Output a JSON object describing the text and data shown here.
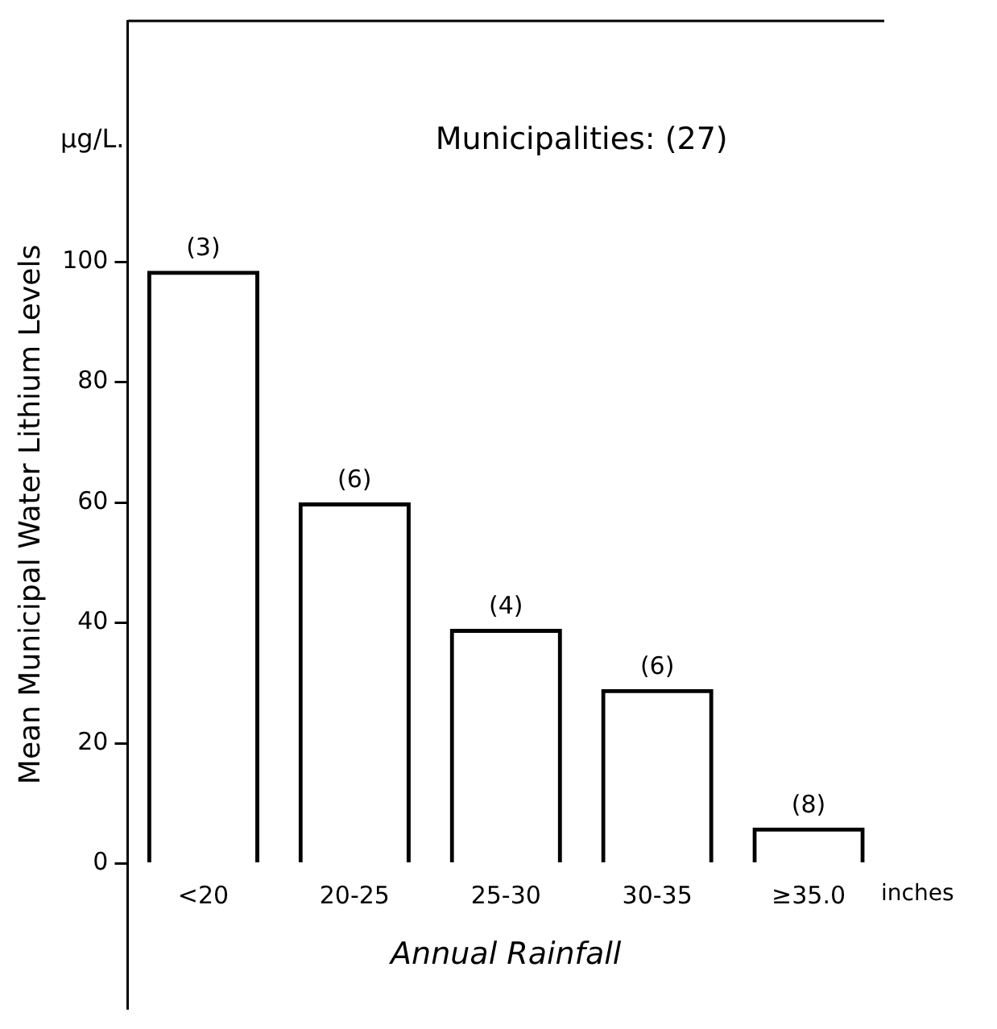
{
  "chart_data": {
    "type": "bar",
    "title": "Municipalities: (27)",
    "ylabel": "Mean Municipal Water Lithium Levels",
    "xlabel": "Annual Rainfall",
    "categories": [
      "<20",
      "20-25",
      "25-30",
      "30-35",
      "≥35.0"
    ],
    "values": [
      98.5,
      60,
      39,
      29,
      6
    ],
    "color": "#000000",
    "ylim": [
      -24,
      140
    ],
    "yticks": [
      0,
      20,
      40,
      60,
      80,
      100
    ],
    "grid": false,
    "legend": false,
    "annotations": [
      "μg/L.",
      "inches",
      {
        "text": "(3)",
        "x": "<20",
        "y": 98.5
      },
      {
        "text": "(6)",
        "x": "20-25",
        "y": 60
      },
      {
        "text": "(4)",
        "x": "25-30",
        "y": 39
      },
      {
        "text": "(6)",
        "x": "30-35",
        "y": 29
      },
      {
        "text": "(8)",
        "x": "≥35.0",
        "y": 6
      }
    ]
  }
}
